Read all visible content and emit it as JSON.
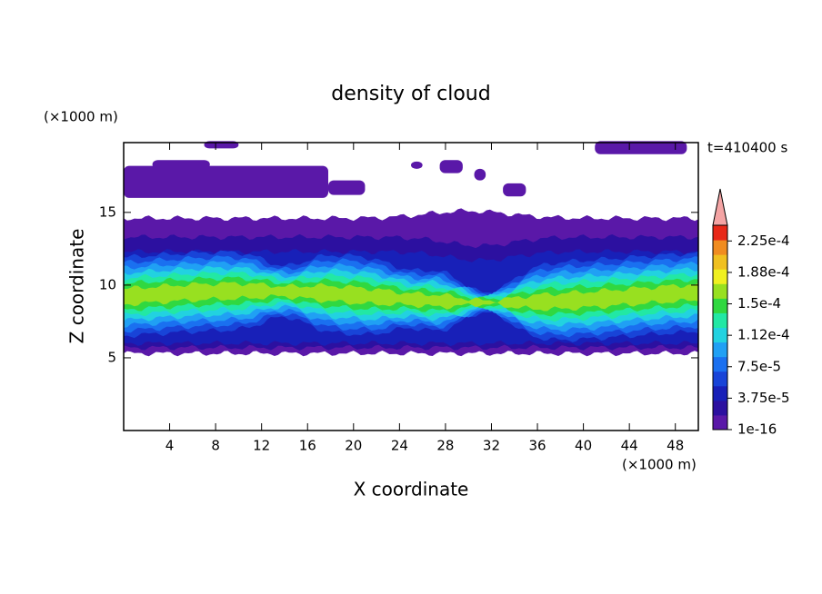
{
  "chart_data": {
    "type": "contour",
    "title": "density of cloud",
    "x_label": "X coordinate",
    "y_label": "Z coordinate",
    "x_unit": "(×1000 m)",
    "y_unit": "(×1000 m)",
    "time_label": "t=410400 s",
    "xlim": [
      0,
      50
    ],
    "ylim": [
      0,
      19.8
    ],
    "xticks": [
      4,
      8,
      12,
      16,
      20,
      24,
      28,
      32,
      36,
      40,
      44,
      48
    ],
    "yticks": [
      5,
      10,
      15
    ],
    "colorbar": {
      "clim": [
        1e-16,
        0.00024375
      ],
      "ticks": [
        {
          "value": 1e-16,
          "label": "1e-16"
        },
        {
          "value": 3.75e-05,
          "label": "3.75e-5"
        },
        {
          "value": 7.5e-05,
          "label": "7.5e-5"
        },
        {
          "value": 0.0001125,
          "label": "1.12e-4"
        },
        {
          "value": 0.00015,
          "label": "1.5e-4"
        },
        {
          "value": 0.0001875,
          "label": "1.88e-4"
        },
        {
          "value": 0.000225,
          "label": "2.25e-4"
        }
      ],
      "colors": [
        "#5a18a8",
        "#2c10a0",
        "#1820b8",
        "#1844d8",
        "#1a70f0",
        "#20a0f4",
        "#22d2e0",
        "#22e8a4",
        "#30d840",
        "#98e020",
        "#f0f020",
        "#f0c020",
        "#f08c20",
        "#e82818"
      ],
      "extend_color": "#f4a4a4"
    }
  }
}
